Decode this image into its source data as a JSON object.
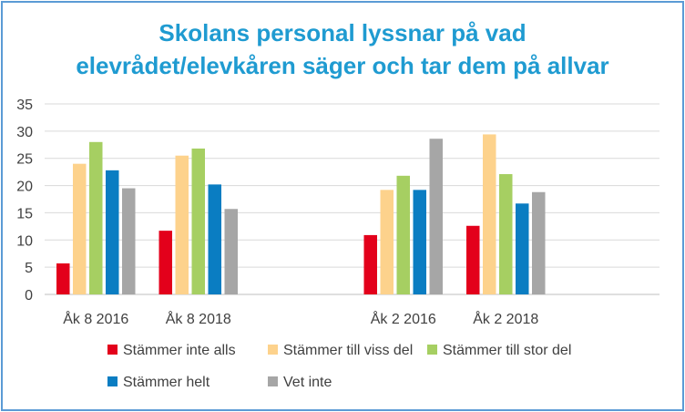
{
  "chart_data": {
    "type": "bar",
    "title_lines": [
      "Skolans personal lyssnar på vad",
      "elevrådet/elevkåren säger och tar dem på allvar"
    ],
    "categories": [
      "Åk 8 2016",
      "Åk 8 2018",
      "",
      "Åk 2 2016",
      "Åk 2 2018",
      ""
    ],
    "ylim": [
      0,
      35
    ],
    "yticks": [
      0,
      5,
      10,
      15,
      20,
      25,
      30,
      35
    ],
    "grid": true,
    "legend_position": "bottom",
    "series": [
      {
        "name": "Stämmer inte alls",
        "color": "#e3001b",
        "values": [
          5.7,
          11.7,
          null,
          10.9,
          12.6,
          null
        ]
      },
      {
        "name": "Stämmer till viss del",
        "color": "#fdd28c",
        "values": [
          24,
          25.5,
          null,
          19.2,
          29.4,
          null
        ]
      },
      {
        "name": "Stämmer till stor del",
        "color": "#a6cf62",
        "values": [
          28,
          26.8,
          null,
          21.8,
          22.1,
          null
        ]
      },
      {
        "name": "Stämmer helt",
        "color": "#0a7dc2",
        "values": [
          22.8,
          20.2,
          null,
          19.2,
          16.7,
          null
        ]
      },
      {
        "name": "Vet inte",
        "color": "#a6a6a6",
        "values": [
          19.5,
          15.7,
          null,
          28.6,
          18.8,
          null
        ]
      }
    ]
  }
}
